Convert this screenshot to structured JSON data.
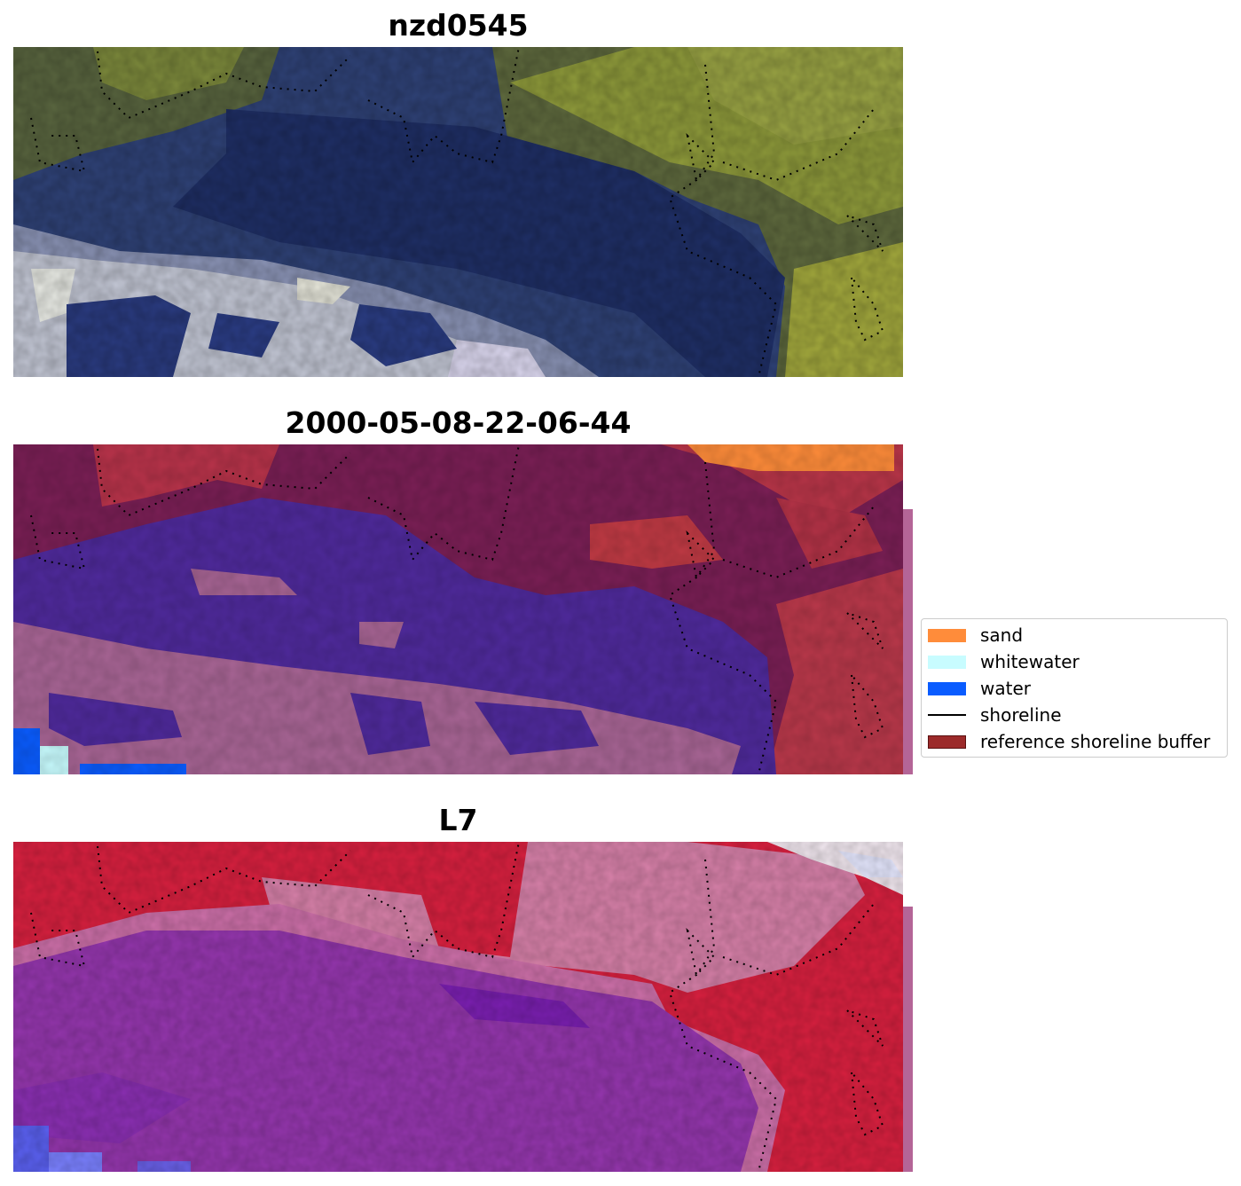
{
  "panels": [
    {
      "title": "nzd0545"
    },
    {
      "title": "2000-05-08-22-06-44"
    },
    {
      "title": "L7"
    }
  ],
  "legend": {
    "items": [
      {
        "label": "sand",
        "color": "#ff8c3a"
      },
      {
        "label": "whitewater",
        "color": "#c8fcff"
      },
      {
        "label": "water",
        "color": "#0a5cff"
      },
      {
        "label": "shoreline",
        "color": "#000000"
      },
      {
        "label": "reference shoreline buffer",
        "color": "#9c2a2a"
      }
    ]
  },
  "colors": {
    "rgb_forest": "#8a9a3c",
    "rgb_water": "#2c3f7e",
    "rgb_surf": "#b8bcd0",
    "class_land": "#7a1f55",
    "class_water": "#4f2a9c",
    "class_surf": "#a86595",
    "class_buffer": "#b83548",
    "ndwi_red": "#d8203f",
    "ndwi_pink": "#d680a8",
    "ndwi_purple": "#9436ad"
  }
}
